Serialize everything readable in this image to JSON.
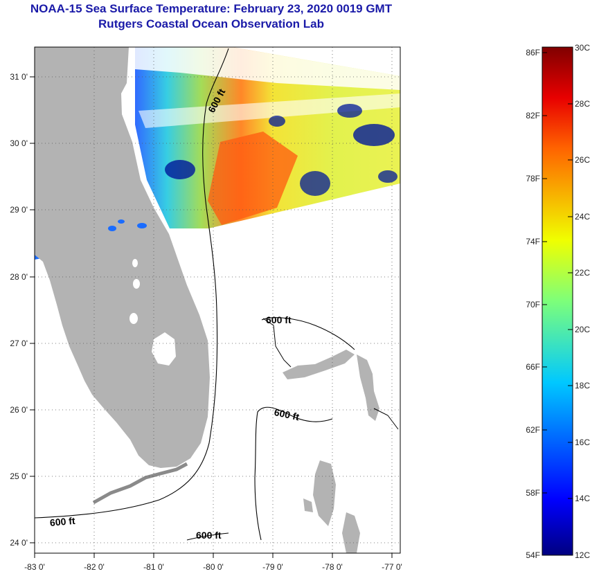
{
  "title_line1": "NOAA-15 Sea Surface Temperature:  February 23, 2020 0019 GMT",
  "title_line2": "Rutgers Coastal Ocean Observation Lab",
  "map": {
    "lon_range": [
      -83,
      -76.8
    ],
    "lat_range": [
      23.8,
      31.4
    ],
    "lon_ticks": [
      "-83 0'",
      "-82 0'",
      "-81 0'",
      "-80 0'",
      "-79 0'",
      "-78 0'",
      "-77 0'"
    ],
    "lat_ticks": [
      "31 0'",
      "30 0'",
      "29 0'",
      "28 0'",
      "27 0'",
      "26 0'",
      "25 0'",
      "24 0'"
    ],
    "land_color": "#b3b3b3",
    "contour_label": "600 ft",
    "contour_labels": [
      "600 ft",
      "600 ft",
      "600 ft",
      "600 ft",
      "600 ft"
    ]
  },
  "colorbar": {
    "f_labels": [
      "86F",
      "82F",
      "78F",
      "74F",
      "70F",
      "66F",
      "62F",
      "58F",
      "54F"
    ],
    "c_labels": [
      "30C",
      "28C",
      "26C",
      "24C",
      "22C",
      "20C",
      "18C",
      "16C",
      "14C",
      "12C"
    ],
    "range_c": [
      12,
      30
    ]
  }
}
